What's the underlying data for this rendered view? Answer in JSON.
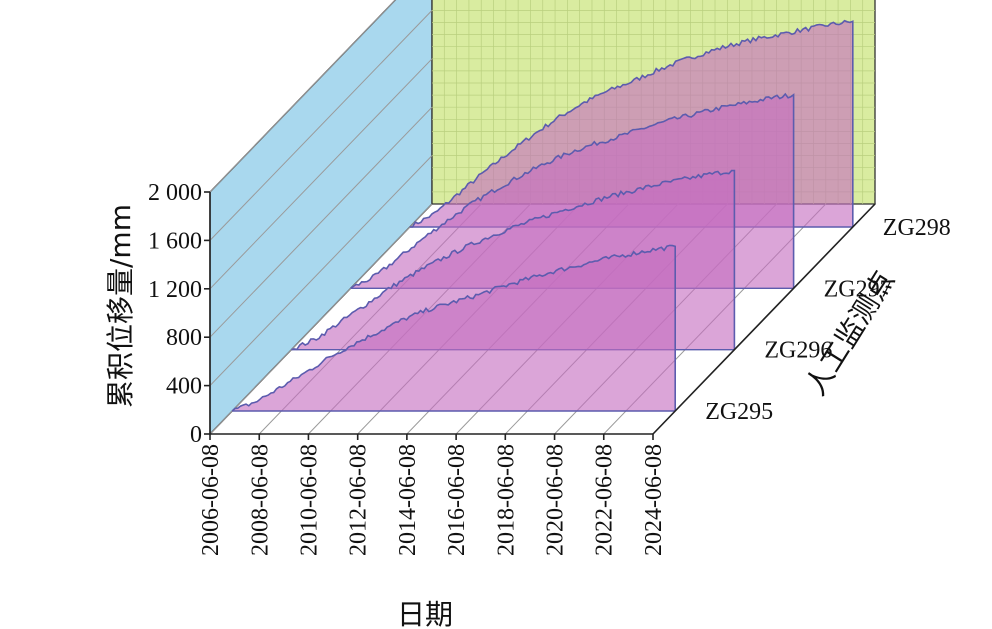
{
  "colors": {
    "back_wall": "#d9eca0",
    "side_wall": "#a9d8ee",
    "area_fill": "#c56ec0",
    "area_edge": "#5c5cae",
    "floor": "#ffffff"
  },
  "chart_data": {
    "type": "area",
    "style": "3d-ribbon",
    "xlabel": "日期",
    "ylabel": "累积位移量/mm",
    "zlabel": "人工监测点",
    "ylim": [
      0,
      2000
    ],
    "yticks": [
      "0",
      "400",
      "800",
      "1 200",
      "1 600",
      "2 000"
    ],
    "ytick_values": [
      0,
      400,
      800,
      1200,
      1600,
      2000
    ],
    "xticks": [
      "2006-06-08",
      "2008-06-08",
      "2010-06-08",
      "2012-06-08",
      "2014-06-08",
      "2016-06-08",
      "2018-06-08",
      "2020-06-08",
      "2022-06-08",
      "2024-06-08"
    ],
    "xlim": [
      "2006-06-08",
      "2024-06-08"
    ],
    "grid": true,
    "x": [
      "2006-06-08",
      "2007-06-08",
      "2008-06-08",
      "2009-06-08",
      "2010-06-08",
      "2011-06-08",
      "2012-06-08",
      "2013-06-08",
      "2014-06-08",
      "2015-06-08",
      "2016-06-08",
      "2017-06-08",
      "2018-06-08",
      "2019-06-08",
      "2020-06-08",
      "2021-06-08",
      "2022-06-08",
      "2023-06-08",
      "2024-06-08"
    ],
    "series": [
      {
        "name": "ZG295",
        "values": [
          0,
          80,
          200,
          320,
          450,
          560,
          660,
          760,
          840,
          900,
          960,
          1030,
          1090,
          1150,
          1200,
          1250,
          1290,
          1330,
          1360
        ]
      },
      {
        "name": "ZG296",
        "values": [
          0,
          90,
          230,
          370,
          510,
          630,
          740,
          840,
          930,
          1010,
          1080,
          1150,
          1210,
          1270,
          1320,
          1370,
          1410,
          1450,
          1480
        ]
      },
      {
        "name": "ZG297",
        "values": [
          0,
          100,
          260,
          420,
          570,
          710,
          830,
          940,
          1040,
          1130,
          1200,
          1260,
          1330,
          1390,
          1440,
          1490,
          1530,
          1570,
          1600
        ]
      },
      {
        "name": "ZG298",
        "values": [
          0,
          110,
          280,
          450,
          610,
          760,
          900,
          1020,
          1120,
          1200,
          1290,
          1370,
          1440,
          1500,
          1550,
          1590,
          1630,
          1670,
          1700
        ]
      }
    ]
  }
}
